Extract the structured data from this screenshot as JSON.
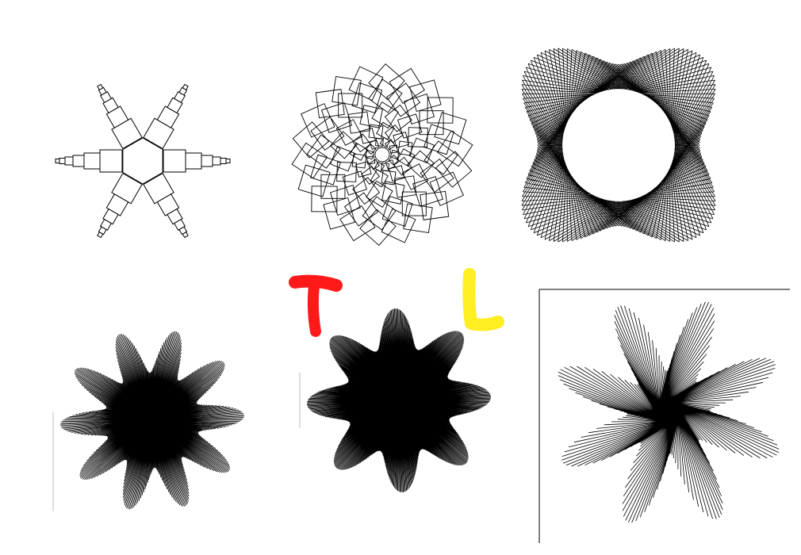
{
  "annotations": {
    "t_label": "T",
    "l_label": "L"
  },
  "colors": {
    "background": "#ffffff",
    "ink": "#000000",
    "t_mark": "#ff1a1a",
    "l_mark": "#ffee22"
  },
  "patterns": [
    {
      "name": "hexagon-square-arms",
      "kind": "arms"
    },
    {
      "name": "rotated-squares-rosette",
      "kind": "squares"
    },
    {
      "name": "woven-lattice-ring",
      "kind": "lattice"
    },
    {
      "name": "line-star-flower-one",
      "kind": "star"
    },
    {
      "name": "line-star-flower-two",
      "kind": "star"
    },
    {
      "name": "pinwheel-line-star",
      "kind": "pinwheel"
    }
  ]
}
